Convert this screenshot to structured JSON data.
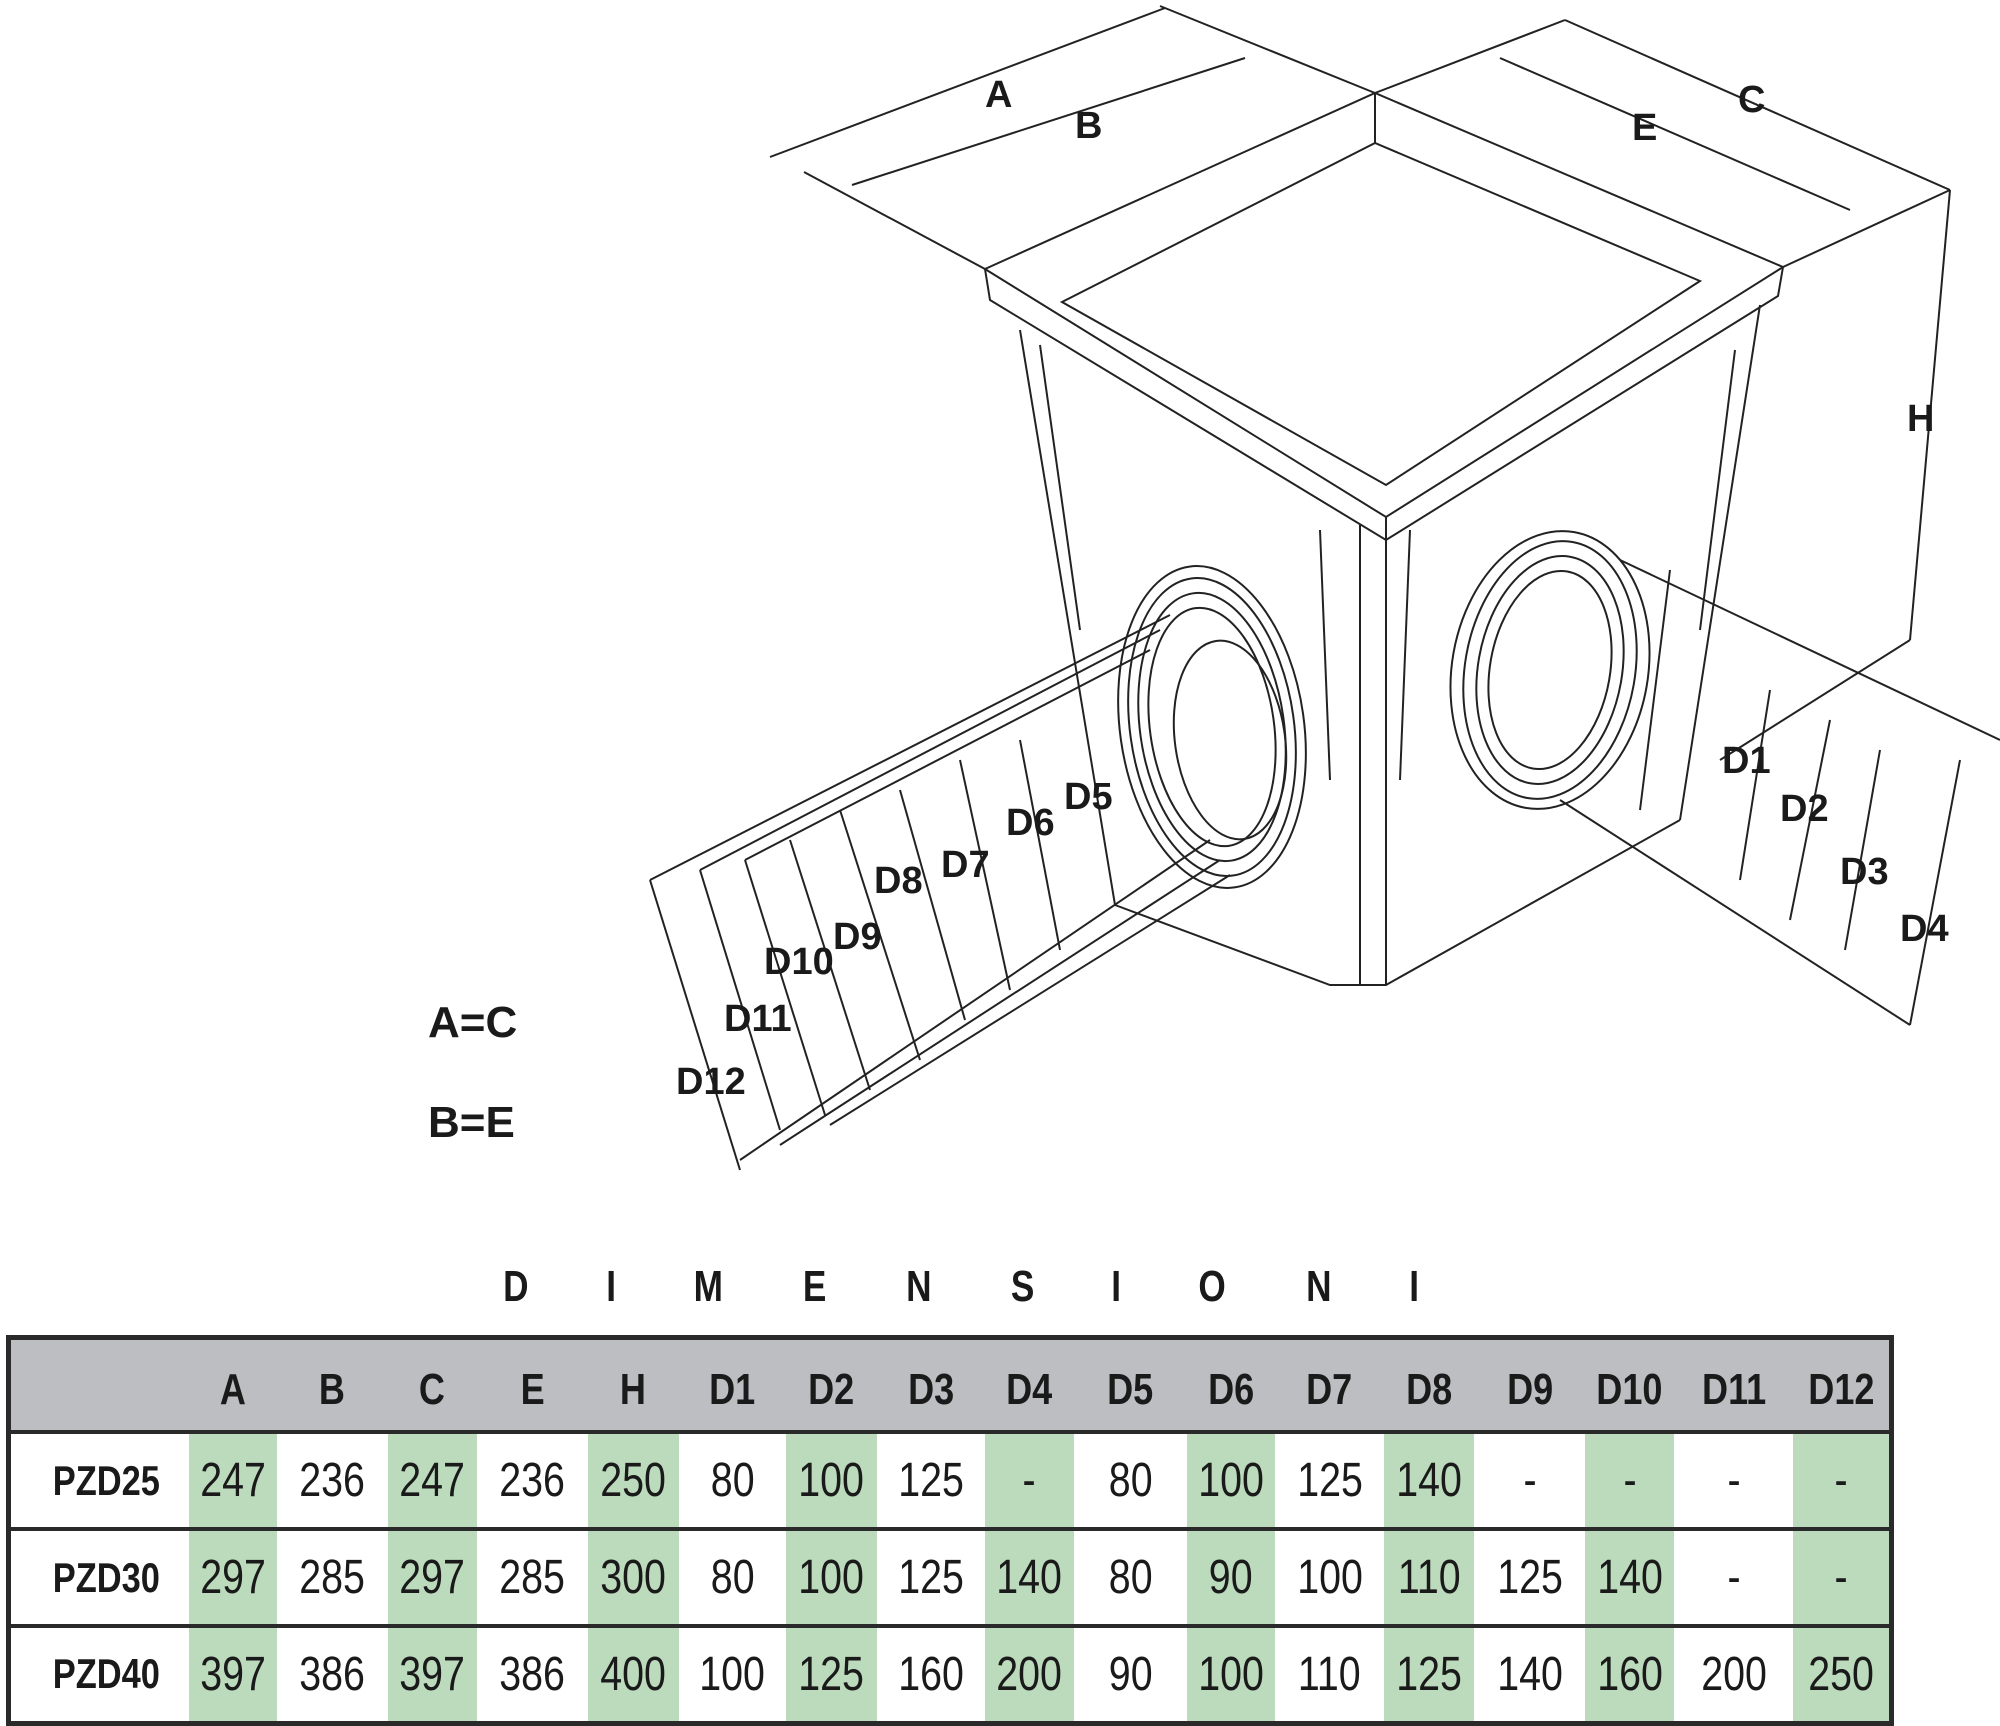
{
  "drawing": {
    "labels": {
      "A": "A",
      "B": "B",
      "C": "C",
      "E": "E",
      "H": "H",
      "D1": "D1",
      "D2": "D2",
      "D3": "D3",
      "D4": "D4",
      "D5": "D5",
      "D6": "D6",
      "D7": "D7",
      "D8": "D8",
      "D9": "D9",
      "D10": "D10",
      "D11": "D11",
      "D12": "D12"
    },
    "equalities": [
      "A=C",
      "B=E"
    ]
  },
  "table": {
    "title": [
      "D",
      "I",
      "M",
      "E",
      "N",
      "S",
      "I",
      "O",
      "N",
      "I"
    ],
    "columns": [
      "",
      "A",
      "B",
      "C",
      "E",
      "H",
      "D1",
      "D2",
      "D3",
      "D4",
      "D5",
      "D6",
      "D7",
      "D8",
      "D9",
      "D10",
      "D11",
      "D12"
    ],
    "rows": [
      [
        "PZD25",
        "247",
        "236",
        "247",
        "236",
        "250",
        "80",
        "100",
        "125",
        "-",
        "80",
        "100",
        "125",
        "140",
        "-",
        "-",
        "-",
        "-"
      ],
      [
        "PZD30",
        "297",
        "285",
        "297",
        "285",
        "300",
        "80",
        "100",
        "125",
        "140",
        "80",
        "90",
        "100",
        "110",
        "125",
        "140",
        "-",
        "-"
      ],
      [
        "PZD40",
        "397",
        "386",
        "397",
        "386",
        "400",
        "100",
        "125",
        "160",
        "200",
        "90",
        "100",
        "110",
        "125",
        "140",
        "160",
        "200",
        "250"
      ]
    ],
    "colors": {
      "header": "#bdbec2",
      "highlight": "#bcdabc",
      "border": "#2a2a2a"
    }
  }
}
